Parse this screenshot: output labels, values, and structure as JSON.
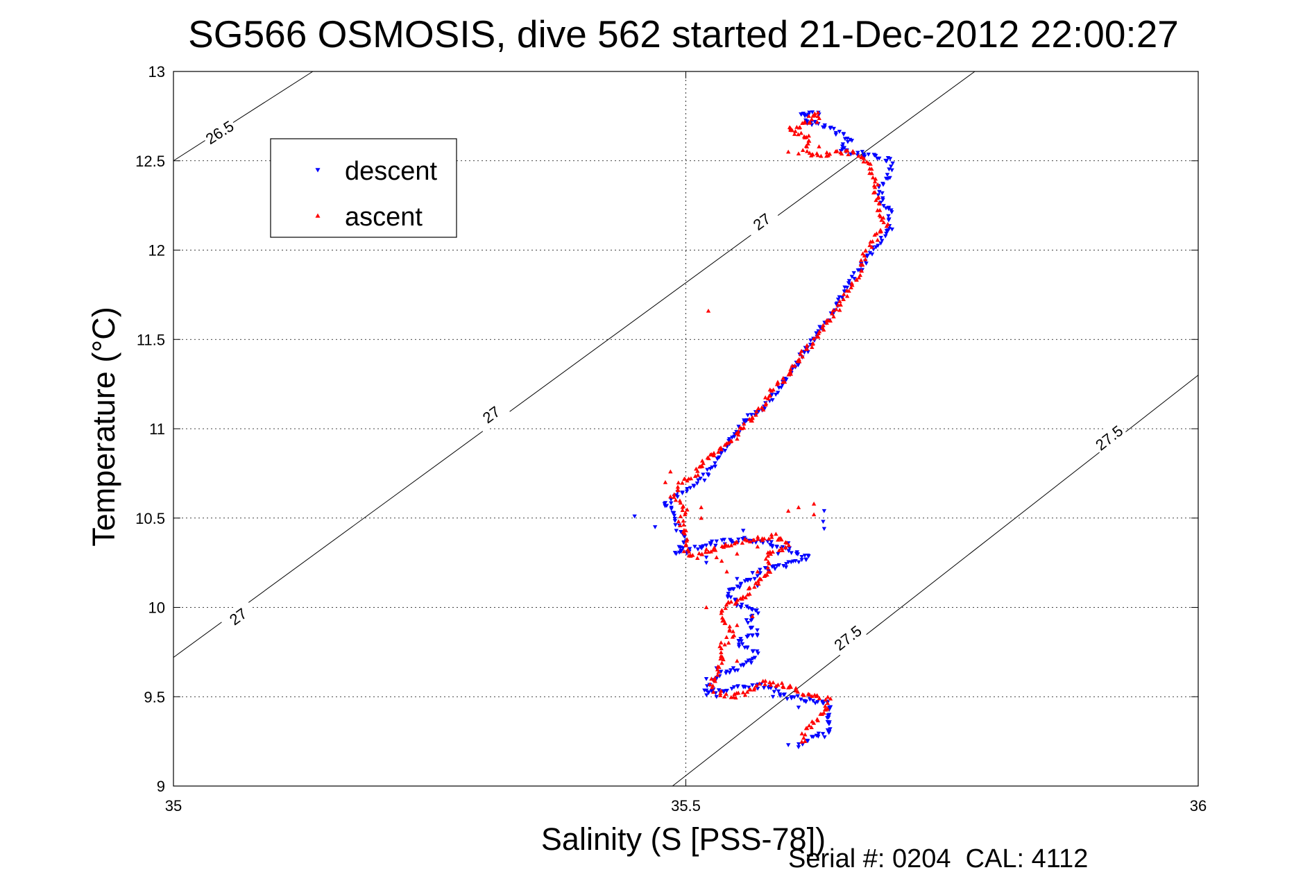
{
  "chart_data": {
    "type": "scatter",
    "title": "SG566 OSMOSIS, dive 562 started 21-Dec-2012 22:00:27",
    "xlabel": "Salinity (S [PSS-78])",
    "ylabel": "Temperature (°C)",
    "xlim": [
      35,
      36
    ],
    "ylim": [
      9,
      13
    ],
    "xticks": [
      "35",
      "35.5",
      "36"
    ],
    "yticks": [
      "9",
      "9.5",
      "10",
      "10.5",
      "11",
      "11.5",
      "12",
      "12.5",
      "13"
    ],
    "grid": true,
    "legend_position": "top-left",
    "footer": "Serial #: 0204  CAL: 4112",
    "series": [
      {
        "name": "descent",
        "color": "#0000ff",
        "marker": "triangle-down",
        "path": [
          [
            35.61,
            9.22
          ],
          [
            35.62,
            9.26
          ],
          [
            35.64,
            9.3
          ],
          [
            35.64,
            9.38
          ],
          [
            35.64,
            9.46
          ],
          [
            35.62,
            9.48
          ],
          [
            35.6,
            9.5
          ],
          [
            35.58,
            9.56
          ],
          [
            35.56,
            9.55
          ],
          [
            35.54,
            9.54
          ],
          [
            35.52,
            9.52
          ],
          [
            35.52,
            9.56
          ],
          [
            35.53,
            9.62
          ],
          [
            35.56,
            9.68
          ],
          [
            35.57,
            9.74
          ],
          [
            35.55,
            9.8
          ],
          [
            35.57,
            9.86
          ],
          [
            35.56,
            9.92
          ],
          [
            35.57,
            9.98
          ],
          [
            35.55,
            10.02
          ],
          [
            35.54,
            10.08
          ],
          [
            35.56,
            10.14
          ],
          [
            35.57,
            10.2
          ],
          [
            35.6,
            10.24
          ],
          [
            35.62,
            10.28
          ],
          [
            35.6,
            10.32
          ],
          [
            35.58,
            10.36
          ],
          [
            35.56,
            10.38
          ],
          [
            35.53,
            10.36
          ],
          [
            35.51,
            10.33
          ],
          [
            35.49,
            10.3
          ],
          [
            35.5,
            10.38
          ],
          [
            35.49,
            10.46
          ],
          [
            35.49,
            10.52
          ],
          [
            35.48,
            10.58
          ],
          [
            35.5,
            10.66
          ],
          [
            35.52,
            10.74
          ],
          [
            35.53,
            10.82
          ],
          [
            35.54,
            10.9
          ],
          [
            35.55,
            10.98
          ],
          [
            35.56,
            11.06
          ],
          [
            35.58,
            11.14
          ],
          [
            35.59,
            11.22
          ],
          [
            35.6,
            11.3
          ],
          [
            35.61,
            11.38
          ],
          [
            35.62,
            11.46
          ],
          [
            35.63,
            11.54
          ],
          [
            35.64,
            11.62
          ],
          [
            35.65,
            11.72
          ],
          [
            35.66,
            11.82
          ],
          [
            35.67,
            11.9
          ],
          [
            35.68,
            11.98
          ],
          [
            35.69,
            12.06
          ],
          [
            35.7,
            12.12
          ],
          [
            35.7,
            12.2
          ],
          [
            35.69,
            12.28
          ],
          [
            35.69,
            12.36
          ],
          [
            35.7,
            12.44
          ],
          [
            35.7,
            12.5
          ],
          [
            35.67,
            12.54
          ],
          [
            35.65,
            12.56
          ],
          [
            35.66,
            12.62
          ],
          [
            35.64,
            12.68
          ],
          [
            35.62,
            12.72
          ],
          [
            35.61,
            12.76
          ],
          [
            35.63,
            12.76
          ]
        ],
        "extra_points": [
          [
            35.635,
            10.44
          ],
          [
            35.635,
            10.54
          ],
          [
            35.634,
            10.48
          ],
          [
            35.52,
            10.28
          ],
          [
            35.52,
            10.25
          ],
          [
            35.45,
            10.51
          ],
          [
            35.47,
            10.45
          ],
          [
            35.556,
            10.43
          ],
          [
            35.6,
            10.36
          ],
          [
            35.59,
            10.3
          ],
          [
            35.585,
            9.5
          ],
          [
            35.61,
            9.44
          ],
          [
            35.64,
            9.4
          ],
          [
            35.64,
            9.44
          ],
          [
            35.6,
            9.23
          ],
          [
            35.57,
            10.12
          ],
          [
            35.55,
            10.16
          ],
          [
            35.52,
            9.6
          ],
          [
            35.53,
            9.66
          ],
          [
            35.53,
            9.5
          ]
        ]
      },
      {
        "name": "ascent",
        "color": "#ff0000",
        "marker": "triangle-up",
        "path": [
          [
            35.615,
            9.24
          ],
          [
            35.615,
            9.3
          ],
          [
            35.625,
            9.36
          ],
          [
            35.635,
            9.42
          ],
          [
            35.64,
            9.48
          ],
          [
            35.63,
            9.5
          ],
          [
            35.615,
            9.52
          ],
          [
            35.6,
            9.56
          ],
          [
            35.58,
            9.58
          ],
          [
            35.57,
            9.56
          ],
          [
            35.56,
            9.52
          ],
          [
            35.54,
            9.5
          ],
          [
            35.525,
            9.55
          ],
          [
            35.53,
            9.62
          ],
          [
            35.535,
            9.7
          ],
          [
            35.535,
            9.78
          ],
          [
            35.545,
            9.84
          ],
          [
            35.54,
            9.9
          ],
          [
            35.535,
            9.96
          ],
          [
            35.54,
            10.02
          ],
          [
            35.56,
            10.06
          ],
          [
            35.565,
            10.12
          ],
          [
            35.58,
            10.18
          ],
          [
            35.58,
            10.24
          ],
          [
            35.58,
            10.3
          ],
          [
            35.6,
            10.34
          ],
          [
            35.59,
            10.4
          ],
          [
            35.565,
            10.38
          ],
          [
            35.54,
            10.34
          ],
          [
            35.52,
            10.31
          ],
          [
            35.505,
            10.28
          ],
          [
            35.5,
            10.32
          ],
          [
            35.5,
            10.4
          ],
          [
            35.495,
            10.48
          ],
          [
            35.5,
            10.54
          ],
          [
            35.49,
            10.62
          ],
          [
            35.495,
            10.7
          ],
          [
            35.51,
            10.74
          ],
          [
            35.515,
            10.8
          ],
          [
            35.53,
            10.88
          ],
          [
            35.55,
            10.96
          ],
          [
            35.56,
            11.04
          ],
          [
            35.575,
            11.12
          ],
          [
            35.585,
            11.22
          ],
          [
            35.6,
            11.3
          ],
          [
            35.61,
            11.4
          ],
          [
            35.625,
            11.48
          ],
          [
            35.635,
            11.58
          ],
          [
            35.65,
            11.68
          ],
          [
            35.66,
            11.78
          ],
          [
            35.67,
            11.88
          ],
          [
            35.675,
            11.98
          ],
          [
            35.685,
            12.06
          ],
          [
            35.695,
            12.14
          ],
          [
            35.69,
            12.22
          ],
          [
            35.685,
            12.3
          ],
          [
            35.685,
            12.38
          ],
          [
            35.68,
            12.46
          ],
          [
            35.67,
            12.53
          ],
          [
            35.655,
            12.55
          ],
          [
            35.64,
            12.54
          ],
          [
            35.625,
            12.53
          ],
          [
            35.615,
            12.56
          ],
          [
            35.62,
            12.62
          ],
          [
            35.6,
            12.68
          ],
          [
            35.625,
            12.72
          ],
          [
            35.63,
            12.76
          ],
          [
            35.62,
            12.75
          ]
        ],
        "extra_points": [
          [
            35.522,
            11.66
          ],
          [
            35.61,
            10.56
          ],
          [
            35.625,
            10.58
          ],
          [
            35.6,
            10.54
          ],
          [
            35.625,
            10.52
          ],
          [
            35.485,
            10.76
          ],
          [
            35.48,
            10.7
          ],
          [
            35.485,
            10.62
          ],
          [
            35.515,
            10.5
          ],
          [
            35.515,
            10.56
          ],
          [
            35.53,
            10.28
          ],
          [
            35.535,
            10.26
          ],
          [
            35.55,
            10.3
          ],
          [
            35.57,
            10.34
          ],
          [
            35.57,
            10.2
          ],
          [
            35.6,
            12.55
          ],
          [
            35.61,
            12.54
          ],
          [
            35.63,
            12.58
          ],
          [
            35.62,
            12.64
          ],
          [
            35.54,
            10.2
          ],
          [
            35.55,
            9.9
          ],
          [
            35.565,
            9.95
          ],
          [
            35.52,
            10.0
          ],
          [
            35.525,
            9.6
          ],
          [
            35.55,
            9.7
          ]
        ]
      }
    ],
    "isopycnals": [
      {
        "label": "26.5",
        "points": [
          [
            35.0,
            12.5
          ],
          [
            35.136,
            13.0
          ]
        ],
        "label_at": [
          35.045,
          12.66
        ]
      },
      {
        "label": "27",
        "points": [
          [
            35.0,
            9.72
          ],
          [
            35.782,
            13.0
          ]
        ],
        "label_at": [
          35.063,
          9.95
        ]
      },
      {
        "label": "27",
        "points": [
          [
            35.0,
            9.72
          ],
          [
            35.782,
            13.0
          ]
        ],
        "label_at": [
          35.31,
          11.08
        ]
      },
      {
        "label": "27",
        "points": [
          [
            35.0,
            9.72
          ],
          [
            35.782,
            13.0
          ]
        ],
        "label_at": [
          35.574,
          12.16
        ]
      },
      {
        "label": "27.5",
        "points": [
          [
            35.487,
            9.0
          ],
          [
            36.0,
            11.3
          ]
        ],
        "label_at": [
          35.658,
          9.83
        ]
      },
      {
        "label": "27.5",
        "points": [
          [
            35.487,
            9.0
          ],
          [
            36.0,
            11.3
          ]
        ],
        "label_at": [
          35.913,
          10.95
        ]
      }
    ]
  }
}
